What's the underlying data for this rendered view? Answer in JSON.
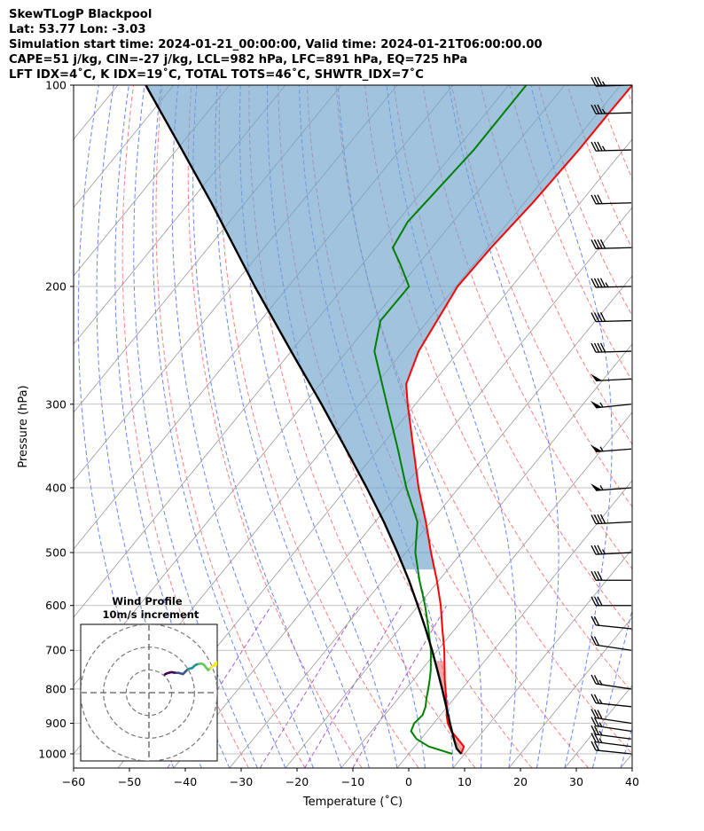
{
  "title_lines": [
    "SkewTLogP Blackpool",
    "Lat: 53.77   Lon: -3.03",
    "Simulation start time: 2024-01-21_00:00:00, Valid time: 2024-01-21T06:00:00.00",
    "CAPE=51 j/kg, CIN=-27 j/kg, LCL=982 hPa, LFC=891 hPa, EQ=725 hPa",
    "LFT IDX=4˚C, K IDX=19˚C, TOTAL TOTS=46˚C, SHWTR_IDX=7˚C"
  ],
  "colors": {
    "temperature": "#ff0000",
    "dewpoint": "#008000",
    "parcel": "#000000",
    "cape_fill": "#6fa3cc",
    "cin_fill": "#e77b7b",
    "dry_adiabats": "#ff6666",
    "moist_adiabats": "#4466ff",
    "mixing_ratio": "#9933cc",
    "isotherms": "#999999"
  },
  "chart_data": [
    {
      "type": "line",
      "subtype": "skew-t log-p",
      "xlabel": "Temperature (˚C)",
      "ylabel": "Pressure (hPa)",
      "xlim": [
        -60,
        40
      ],
      "ylim": [
        1050,
        100
      ],
      "y_scale": "log",
      "x_ticks": [
        "−60",
        "−50",
        "−40",
        "−30",
        "−20",
        "−10",
        "0",
        "10",
        "20",
        "30",
        "40"
      ],
      "x_tick_values": [
        -60,
        -50,
        -40,
        -30,
        -20,
        -10,
        0,
        10,
        20,
        30,
        40
      ],
      "y_ticks": [
        "1000",
        "900",
        "800",
        "700",
        "600",
        "500",
        "400",
        "300",
        "200",
        "100"
      ],
      "y_tick_values": [
        1000,
        900,
        800,
        700,
        600,
        500,
        400,
        300,
        200,
        100
      ],
      "grid": true,
      "series": [
        {
          "key": "temperature",
          "pressure": [
            1000,
            975,
            950,
            925,
            900,
            875,
            850,
            825,
            800,
            775,
            750,
            700,
            650,
            600,
            550,
            500,
            450,
            400,
            350,
            300,
            280,
            250,
            200,
            175,
            150,
            125,
            110,
            100
          ],
          "values": [
            9.4,
            8.8,
            6.6,
            4.3,
            2.5,
            1.1,
            -0.1,
            -1.5,
            -2.9,
            -4.4,
            -5.8,
            -8.8,
            -12.3,
            -16.0,
            -20.4,
            -25.5,
            -30.9,
            -37.2,
            -43.8,
            -51.4,
            -54.6,
            -57.2,
            -59.7,
            -59.4,
            -58.5,
            -58.0,
            -58.0,
            -57.9
          ]
        },
        {
          "key": "dewpoint",
          "pressure": [
            1000,
            975,
            950,
            925,
            900,
            875,
            850,
            825,
            800,
            775,
            750,
            700,
            650,
            600,
            550,
            500,
            450,
            400,
            350,
            300,
            250,
            225,
            200,
            185,
            175,
            160,
            125,
            100
          ],
          "values": [
            7.8,
            2.5,
            -0.8,
            -2.9,
            -3.5,
            -3.2,
            -3.9,
            -5.0,
            -6.0,
            -7.1,
            -8.3,
            -11.2,
            -14.8,
            -18.8,
            -23.5,
            -28.3,
            -32.4,
            -39.4,
            -46.6,
            -55.1,
            -65.1,
            -68.5,
            -68.4,
            -73.3,
            -77.0,
            -78.1,
            -76.8,
            -76.9
          ]
        },
        {
          "key": "parcel",
          "pressure": [
            1000,
            982,
            950,
            900,
            850,
            800,
            750,
            700,
            650,
            600,
            550,
            500,
            450,
            400,
            350,
            300,
            250,
            200,
            150,
            125,
            100
          ],
          "values": [
            9.4,
            7.8,
            5.9,
            2.9,
            -0.2,
            -3.5,
            -7.1,
            -11.0,
            -15.3,
            -20.1,
            -25.4,
            -31.5,
            -38.4,
            -46.5,
            -55.9,
            -66.8,
            -80.0,
            -96.0,
            -116.0,
            -129.0,
            -145.0
          ]
        }
      ],
      "wind_barbs": {
        "pressure": [
          1000,
          975,
          950,
          925,
          900,
          850,
          800,
          700,
          650,
          600,
          550,
          500,
          450,
          400,
          350,
          300,
          275,
          250,
          225,
          200,
          175,
          150,
          125,
          110,
          100
        ],
        "speed_kt": [
          20,
          25,
          25,
          25,
          30,
          25,
          25,
          20,
          20,
          30,
          30,
          35,
          40,
          55,
          55,
          55,
          50,
          40,
          40,
          45,
          40,
          30,
          35,
          35,
          35
        ],
        "direction_deg": [
          250,
          245,
          245,
          240,
          240,
          250,
          240,
          240,
          250,
          270,
          270,
          280,
          280,
          285,
          285,
          290,
          280,
          275,
          275,
          275,
          275,
          275,
          275,
          275,
          275
        ]
      }
    },
    {
      "type": "line",
      "subtype": "hodograph",
      "title_lines": [
        "Wind Profile",
        "10m/s increment"
      ],
      "rings_ms": [
        10,
        20,
        30
      ],
      "x_range": [
        -30,
        30
      ],
      "y_range": [
        -30,
        30
      ],
      "trace_ms": {
        "u": [
          7,
          8,
          9,
          10,
          11,
          12,
          13,
          14,
          15,
          16,
          17,
          18,
          19,
          20,
          21,
          22,
          23,
          24,
          25,
          26,
          27,
          28,
          29,
          30,
          29,
          30
        ],
        "v": [
          8,
          8.5,
          8.8,
          9.0,
          8.8,
          8.7,
          8.7,
          8.4,
          8.2,
          9.2,
          10.2,
          10.6,
          10.8,
          11.8,
          12.4,
          12.6,
          12.8,
          12.4,
          11.2,
          9.9,
          10.8,
          11.7,
          12.0,
          12.4,
          12.8,
          13.2
        ]
      },
      "trace_colors": [
        "#440154",
        "#3b528b",
        "#21918c",
        "#5ec962",
        "#fde725"
      ]
    }
  ]
}
